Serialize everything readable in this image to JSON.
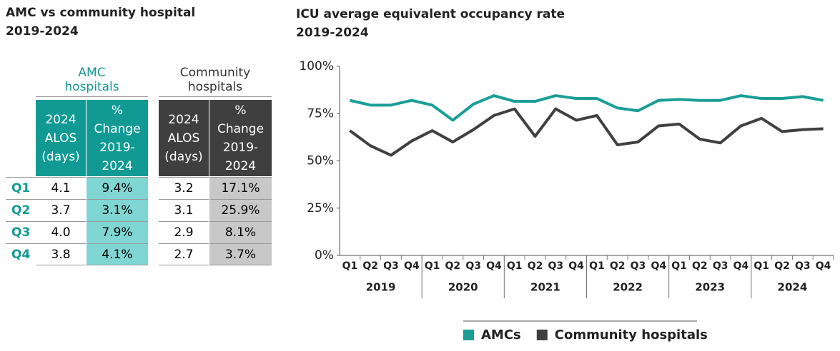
{
  "table": {
    "title": "AMC vs community hospital",
    "subtitle": "2019-2024",
    "groups": [
      "AMC hospitals",
      "Community hospitals"
    ],
    "headers": [
      "2024 ALOS (days)",
      "% Change 2019-2024",
      "2024 ALOS (days)",
      "% Change 2019-2024"
    ],
    "rows": [
      [
        "Q1",
        "4.1",
        "9.4%",
        "3.2",
        "17.1%"
      ],
      [
        "Q2",
        "3.7",
        "3.1%",
        "3.1",
        "25.9%"
      ],
      [
        "Q3",
        "4.0",
        "7.9%",
        "2.9",
        "8.1%"
      ],
      [
        "Q4",
        "3.8",
        "4.1%",
        "2.7",
        "3.7%"
      ]
    ]
  },
  "chart_data": {
    "type": "line",
    "title": "ICU average equivalent occupancy rate",
    "subtitle": "2019-2024",
    "categories": [
      "Q1",
      "Q2",
      "Q3",
      "Q4",
      "Q1",
      "Q2",
      "Q3",
      "Q4",
      "Q1",
      "Q2",
      "Q3",
      "Q4",
      "Q1",
      "Q2",
      "Q3",
      "Q4",
      "Q1",
      "Q2",
      "Q3",
      "Q4",
      "Q1",
      "Q2",
      "Q3",
      "Q4"
    ],
    "category_groups": [
      "2019",
      "2020",
      "2021",
      "2022",
      "2023",
      "2024"
    ],
    "series": [
      {
        "name": "AMCs",
        "color": "#1a9e96",
        "values": [
          82,
          79.5,
          79.5,
          82,
          79.5,
          71.5,
          80,
          84.5,
          81.5,
          81.5,
          84.5,
          83,
          83,
          78,
          76.5,
          82,
          82.5,
          82,
          82,
          84.5,
          83,
          83,
          84,
          82
        ]
      },
      {
        "name": "Community hospitals",
        "color": "#404040",
        "values": [
          66,
          58,
          53,
          60.5,
          66,
          60,
          66.5,
          74,
          77.5,
          63,
          77.5,
          71.5,
          74,
          58.5,
          60,
          68.5,
          69.5,
          61.5,
          59.5,
          68.5,
          72.5,
          65.5,
          66.5,
          67
        ]
      }
    ],
    "ylim": [
      0,
      100
    ],
    "yticks": [
      {
        "value": 0,
        "label": "0%"
      },
      {
        "value": 25,
        "label": "25%"
      },
      {
        "value": 50,
        "label": "50%"
      },
      {
        "value": 75,
        "label": "75%"
      },
      {
        "value": 100,
        "label": "100%"
      }
    ],
    "grid": false,
    "legend": "bottom"
  }
}
